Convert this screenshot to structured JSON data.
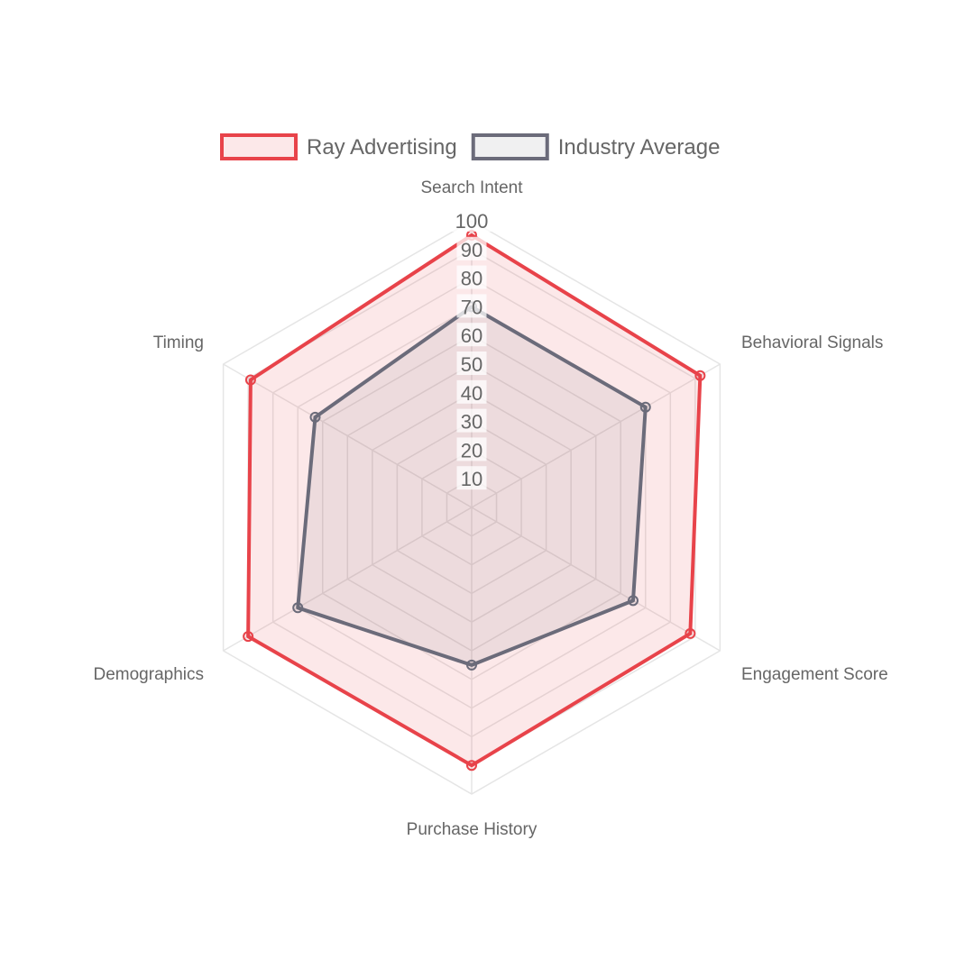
{
  "chart_data": {
    "type": "radar",
    "labels": [
      "Search Intent",
      "Behavioral Signals",
      "Engagement Score",
      "Purchase History",
      "Demographics",
      "Timing"
    ],
    "series": [
      {
        "name": "Ray Advertising",
        "values": [
          95,
          92,
          88,
          90,
          90,
          89
        ],
        "color": "#e8434a",
        "fill": "rgba(232,67,74,0.12)"
      },
      {
        "name": "Industry Average",
        "values": [
          70,
          70,
          65,
          55,
          70,
          63
        ],
        "color": "#6b6b7a",
        "fill": "rgba(107,107,122,0.10)"
      }
    ],
    "rlim": [
      0,
      100
    ],
    "ticks": [
      "10",
      "20",
      "30",
      "40",
      "50",
      "60",
      "70",
      "80",
      "90",
      "100"
    ],
    "grid": true,
    "legend_position": "top"
  }
}
